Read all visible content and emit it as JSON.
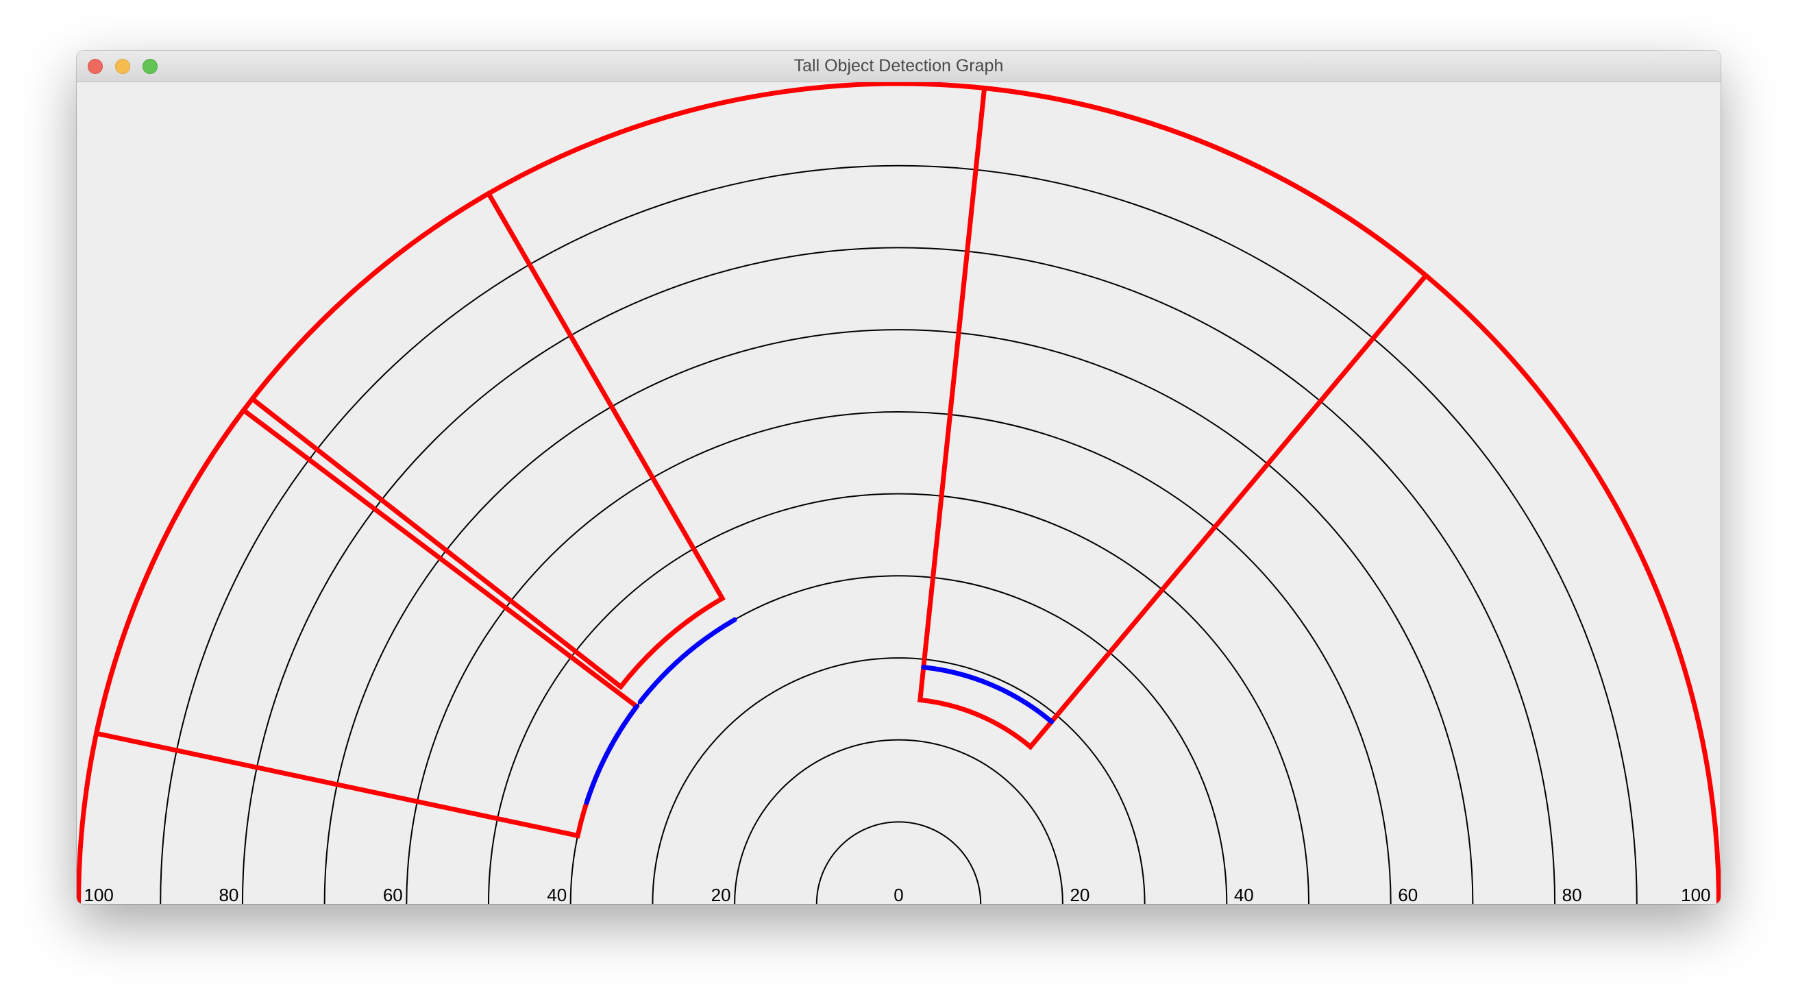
{
  "window": {
    "title": "Tall Object Detection Graph"
  },
  "controls": {
    "close": "close-icon",
    "minimize": "minimize-icon",
    "maximize": "maximize-icon"
  },
  "colors": {
    "background": "#eeeeee",
    "grid": "#000000",
    "boundary": "#ff0000",
    "object": "#0000ff"
  },
  "chart_data": {
    "type": "polar-semicircle",
    "rings": [
      10,
      20,
      30,
      40,
      50,
      60,
      70,
      80,
      90,
      100
    ],
    "tick_labels": [
      "100",
      "80",
      "60",
      "40",
      "20",
      "0",
      "20",
      "40",
      "60",
      "80",
      "100"
    ],
    "tick_values": [
      -100,
      -80,
      -60,
      -40,
      -20,
      0,
      20,
      40,
      60,
      80,
      100
    ],
    "grid": true,
    "detection_zones": [
      {
        "color": "red",
        "angle_range_deg": [
          143,
          168
        ],
        "radial_range": [
          40,
          100
        ],
        "object": {
          "color": "blue",
          "range": 40,
          "angle_range_deg": [
            143,
            162
          ]
        }
      },
      {
        "color": "red",
        "angle_range_deg": [
          120,
          142
        ],
        "radial_range": [
          43,
          100
        ],
        "object": {
          "color": "blue",
          "range": 40,
          "angle_range_deg": [
            120,
            142
          ]
        }
      },
      {
        "color": "red",
        "angle_range_deg": [
          50,
          84
        ],
        "radial_range": [
          25,
          100
        ],
        "object": {
          "color": "blue",
          "range": 29,
          "angle_range_deg": [
            50,
            84
          ]
        }
      }
    ],
    "outer_arc": {
      "color": "red",
      "radius": 100,
      "angle_range_deg": [
        0,
        180
      ]
    }
  }
}
